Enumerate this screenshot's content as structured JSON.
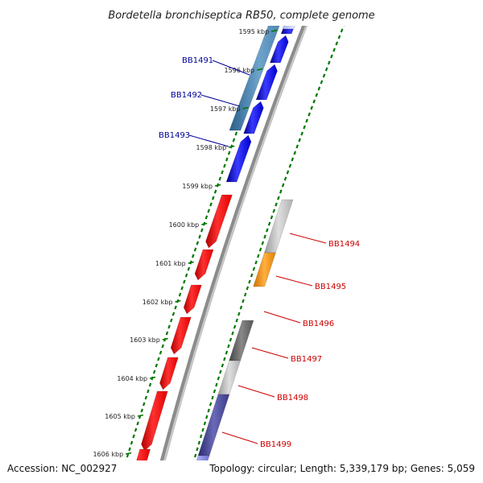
{
  "title": "Bordetella bronchiseptica RB50, complete genome",
  "footer": {
    "accession": "Accession: NC_002927",
    "topology": "Topology: circular; Length: 5,339,179 bp; Genes: 5,059"
  },
  "kbp_ticks": [
    "1595 kbp",
    "1596 kbp",
    "1597 kbp",
    "1598 kbp",
    "1599 kbp",
    "1600 kbp",
    "1601 kbp",
    "1602 kbp",
    "1603 kbp",
    "1604 kbp",
    "1605 kbp",
    "1606 kbp"
  ],
  "left_labels": [
    "BB1491",
    "BB1492",
    "BB1493"
  ],
  "right_labels": [
    "BB1494",
    "BB1495",
    "BB1496",
    "BB1497",
    "BB1498",
    "BB1499"
  ],
  "colors": {
    "forward_gene": "#0000ff",
    "reverse_gene": "#ff0000",
    "left_label": "#000099",
    "right_label": "#cc0000",
    "tick_dots": "#007700",
    "backbone": "#888888"
  }
}
